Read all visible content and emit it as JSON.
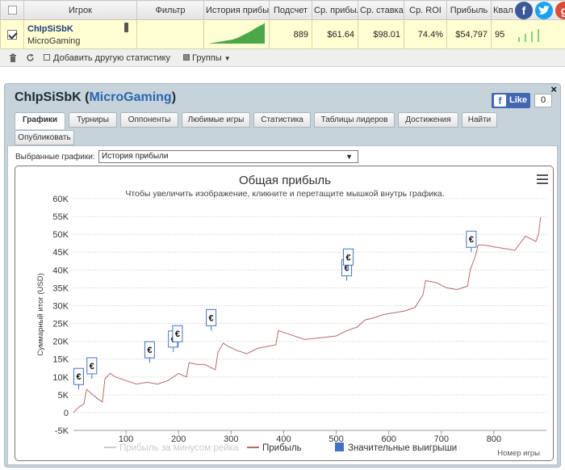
{
  "table": {
    "headers": [
      "",
      "Игрок",
      "Фильтр",
      "История прибыли",
      "Подсчет",
      "Ср. прибыль",
      "Ср. ставка",
      "Ср. ROI",
      "Прибыль",
      "Квал"
    ],
    "row": {
      "player": "ChIpSiSbK",
      "network": "MicroGaming",
      "count": "889",
      "avg_profit": "$61.64",
      "avg_stake": "$98.01",
      "avg_roi": "74.4%",
      "profit": "$54,797",
      "qual": "95"
    }
  },
  "social": {
    "facebook": "f",
    "twitter": "t",
    "google": "g"
  },
  "toolbar": {
    "add_stats": "Добавить другую статистику",
    "groups": "Группы"
  },
  "panel": {
    "title_player": "ChIpSiSbK",
    "title_site": "MicroGaming",
    "like_label": "Like",
    "like_count": "0",
    "close": "×"
  },
  "tabs": [
    "Графики",
    "Турниры",
    "Оппоненты",
    "Любимые игры",
    "Статистика",
    "Таблицы лидеров",
    "Достижения",
    "Найти",
    "Опубликовать"
  ],
  "chart_select": {
    "label": "Выбранные графики:",
    "value": "История прибыли"
  },
  "chart_data": {
    "type": "line",
    "title": "Общая прибыль",
    "subtitle": "Чтобы увеличить изображение, кликните и перетащите мышкой внутрь графика.",
    "xlabel": "Номер игры",
    "ylabel": "Суммарный итог (USD)",
    "xlim": [
      0,
      900
    ],
    "ylim": [
      -5000,
      60000
    ],
    "xticks": [
      100,
      200,
      300,
      400,
      500,
      600,
      700,
      800
    ],
    "yticks": [
      -5000,
      0,
      5000,
      10000,
      15000,
      20000,
      25000,
      30000,
      35000,
      40000,
      45000,
      50000,
      55000,
      60000
    ],
    "ytick_labels": [
      "-5K",
      "0",
      "5K",
      "10K",
      "15K",
      "20K",
      "25K",
      "30K",
      "35K",
      "40K",
      "45K",
      "50K",
      "55K",
      "60K"
    ],
    "grid": true,
    "legend_position": "bottom",
    "series": [
      {
        "name": "Прибыль",
        "color": "#b86a6a",
        "x": [
          0,
          10,
          20,
          25,
          45,
          55,
          60,
          70,
          80,
          100,
          120,
          140,
          160,
          180,
          200,
          215,
          220,
          235,
          250,
          270,
          275,
          285,
          295,
          310,
          330,
          350,
          385,
          390,
          410,
          440,
          470,
          500,
          520,
          540,
          555,
          570,
          590,
          610,
          630,
          650,
          665,
          670,
          690,
          710,
          730,
          750,
          755,
          765,
          770,
          780,
          800,
          820,
          840,
          860,
          880,
          885,
          889
        ],
        "y": [
          0,
          1500,
          2500,
          6500,
          4000,
          3000,
          9500,
          11000,
          10000,
          9000,
          8000,
          8500,
          8000,
          9000,
          11000,
          10000,
          14000,
          13500,
          13500,
          12000,
          17000,
          19500,
          18500,
          17500,
          16500,
          18000,
          19000,
          23000,
          22000,
          20500,
          21000,
          21500,
          23000,
          24000,
          26000,
          26500,
          27500,
          28000,
          28500,
          29500,
          33000,
          37000,
          36500,
          35000,
          34500,
          35500,
          40000,
          44000,
          47000,
          47000,
          46500,
          46000,
          45500,
          49500,
          48000,
          50000,
          54797
        ]
      },
      {
        "name": "Прибыль за минусом рейка",
        "color": "#cccccc",
        "hidden": true
      },
      {
        "name": "Значительные выигрыши",
        "color": "#4572c4",
        "marker_symbol": "€",
        "x": [
          10,
          35,
          145,
          190,
          198,
          262,
          520,
          523,
          757
        ],
        "y": [
          6500,
          9500,
          14000,
          17000,
          18500,
          23000,
          37000,
          40000,
          45000
        ]
      }
    ]
  }
}
